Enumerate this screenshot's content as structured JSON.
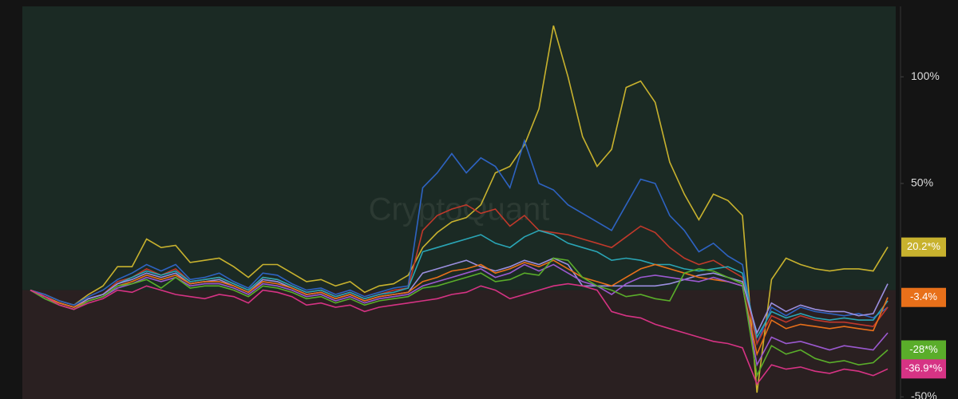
{
  "chart_data": {
    "type": "line",
    "watermark": "CryptoQuant",
    "ylim": [
      -51,
      133
    ],
    "yticks": [
      {
        "value": 100,
        "label": "100%"
      },
      {
        "value": 50,
        "label": "50%"
      },
      {
        "value": -50,
        "label": "-50%"
      }
    ],
    "positive_color": "#1b2a24",
    "negative_color": "#2a2021",
    "series": [
      {
        "color": "#c8b22e",
        "last_value_label": "20.2*%",
        "values": [
          0,
          -2,
          -5,
          -7,
          -2,
          2,
          11,
          11,
          24,
          20,
          21,
          13,
          14,
          15,
          11,
          6,
          12,
          12,
          8,
          4,
          5,
          2,
          4,
          -1,
          2,
          3,
          7,
          20,
          27,
          32,
          34,
          40,
          55,
          58,
          68,
          85,
          124,
          100,
          72,
          58,
          66,
          95,
          98,
          88,
          60,
          45,
          33,
          45,
          42,
          35,
          -48,
          5,
          15,
          12,
          10,
          9,
          10,
          10,
          9,
          20.2
        ]
      },
      {
        "color": "#2e63c2",
        "values": [
          0,
          -2,
          -5,
          -7,
          -3,
          0,
          5,
          8,
          12,
          9,
          12,
          5,
          6,
          8,
          4,
          1,
          8,
          7,
          3,
          0,
          1,
          -2,
          0,
          -3,
          -1,
          1,
          2,
          48,
          55,
          64,
          55,
          62,
          58,
          48,
          70,
          50,
          47,
          40,
          36,
          32,
          28,
          40,
          52,
          50,
          35,
          28,
          18,
          22,
          16,
          12,
          -25,
          -8,
          -12,
          -8,
          -10,
          -11,
          -12,
          -11,
          -13,
          -8
        ]
      },
      {
        "color": "#c0392b",
        "values": [
          0,
          -3,
          -6,
          -8,
          -4,
          -2,
          4,
          6,
          10,
          7,
          10,
          4,
          5,
          6,
          3,
          0,
          6,
          5,
          2,
          -1,
          0,
          -3,
          -1,
          -4,
          -2,
          0,
          1,
          28,
          35,
          38,
          40,
          36,
          38,
          30,
          35,
          28,
          27,
          26,
          24,
          22,
          20,
          25,
          30,
          27,
          20,
          15,
          12,
          14,
          10,
          6,
          -25,
          -12,
          -15,
          -12,
          -14,
          -15,
          -15,
          -16,
          -17,
          -8
        ]
      },
      {
        "color": "#2aa5b5",
        "values": [
          0,
          -3,
          -6,
          -8,
          -4,
          -2,
          3,
          6,
          9,
          7,
          9,
          4,
          5,
          6,
          3,
          0,
          6,
          5,
          2,
          -1,
          0,
          -3,
          -1,
          -4,
          -2,
          -1,
          1,
          18,
          20,
          22,
          24,
          26,
          22,
          20,
          25,
          28,
          26,
          22,
          20,
          18,
          14,
          15,
          14,
          12,
          12,
          10,
          9,
          10,
          11,
          8,
          -22,
          -10,
          -13,
          -11,
          -13,
          -14,
          -13,
          -14,
          -14,
          -5
        ]
      },
      {
        "color": "#9b8fe0",
        "values": [
          0,
          -3,
          -6,
          -8,
          -4,
          -2,
          3,
          5,
          8,
          6,
          8,
          3,
          4,
          5,
          2,
          -1,
          5,
          4,
          1,
          -2,
          -1,
          -4,
          -2,
          -5,
          -3,
          -2,
          -1,
          8,
          10,
          12,
          14,
          11,
          9,
          11,
          14,
          12,
          15,
          12,
          2,
          2,
          2,
          2,
          2,
          2,
          3,
          5,
          7,
          8,
          6,
          4,
          -20,
          -6,
          -10,
          -7,
          -9,
          -10,
          -10,
          -12,
          -11,
          3
        ]
      },
      {
        "color": "#e8701a",
        "last_value_label": "-3.4%",
        "values": [
          0,
          -3,
          -6,
          -8,
          -5,
          -3,
          2,
          4,
          7,
          5,
          7,
          3,
          4,
          4,
          2,
          -1,
          4,
          3,
          1,
          -2,
          -1,
          -4,
          -2,
          -5,
          -3,
          -2,
          -1,
          4,
          6,
          9,
          10,
          12,
          8,
          10,
          13,
          11,
          14,
          10,
          6,
          4,
          2,
          6,
          10,
          12,
          10,
          8,
          6,
          5,
          4,
          2,
          -30,
          -14,
          -18,
          -16,
          -17,
          -18,
          -17,
          -18,
          -19,
          -3.4
        ]
      },
      {
        "color": "#9b59d0",
        "values": [
          0,
          -4,
          -7,
          -9,
          -5,
          -3,
          1,
          3,
          6,
          4,
          6,
          2,
          3,
          3,
          1,
          -2,
          3,
          2,
          0,
          -3,
          -2,
          -5,
          -3,
          -6,
          -4,
          -3,
          -2,
          2,
          4,
          6,
          8,
          10,
          6,
          8,
          12,
          9,
          12,
          8,
          4,
          2,
          -2,
          3,
          6,
          7,
          6,
          5,
          4,
          6,
          4,
          2,
          -35,
          -22,
          -25,
          -24,
          -26,
          -28,
          -26,
          -27,
          -28,
          -20
        ]
      },
      {
        "color": "#5aad2a",
        "last_value_label": "-28*%",
        "values": [
          0,
          -4,
          -7,
          -9,
          -5,
          -3,
          2,
          3,
          5,
          1,
          6,
          1,
          2,
          2,
          0,
          -3,
          2,
          1,
          -1,
          -4,
          -3,
          -6,
          -4,
          -7,
          -5,
          -4,
          -3,
          1,
          2,
          4,
          6,
          8,
          4,
          5,
          8,
          7,
          15,
          14,
          6,
          2,
          0,
          -3,
          -2,
          -4,
          -5,
          8,
          10,
          9,
          6,
          3,
          -40,
          -26,
          -30,
          -28,
          -32,
          -34,
          -33,
          -35,
          -34,
          -28
        ]
      },
      {
        "color": "#d63384",
        "last_value_label": "-36.9*%",
        "values": [
          0,
          -3,
          -7,
          -9,
          -6,
          -4,
          0,
          -1,
          2,
          0,
          -2,
          -3,
          -4,
          -2,
          -3,
          -6,
          0,
          -1,
          -3,
          -7,
          -6,
          -8,
          -7,
          -10,
          -8,
          -7,
          -6,
          -5,
          -4,
          -2,
          -1,
          2,
          0,
          -4,
          -2,
          0,
          2,
          3,
          2,
          0,
          -10,
          -12,
          -13,
          -16,
          -18,
          -20,
          -22,
          -24,
          -25,
          -27,
          -44,
          -35,
          -37,
          -36,
          -38,
          -39,
          -37,
          -38,
          -40,
          -36.9
        ]
      }
    ]
  }
}
